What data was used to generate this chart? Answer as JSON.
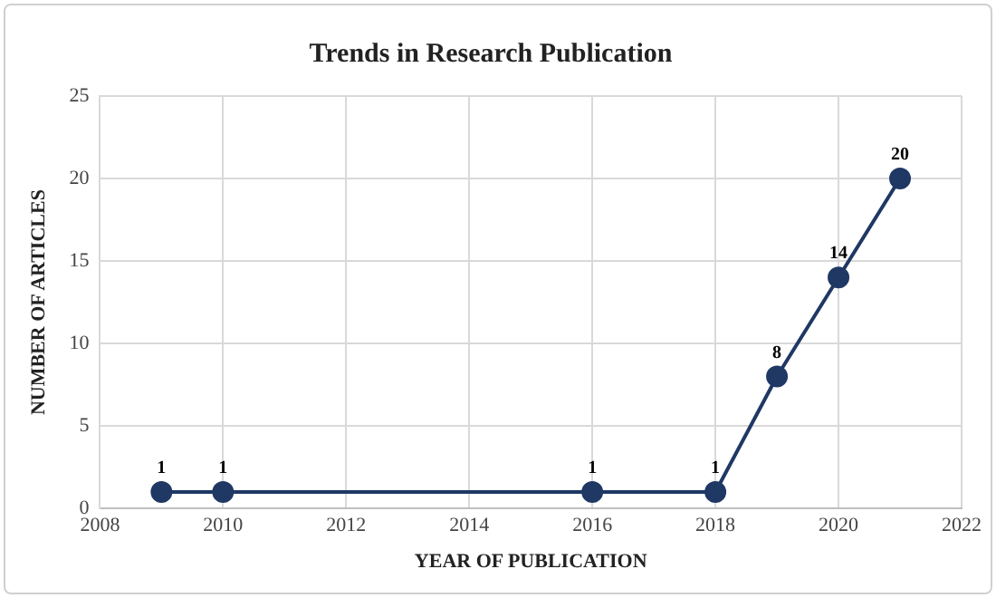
{
  "chart_data": {
    "type": "line",
    "title": "Trends in Research Publication",
    "xlabel": "YEAR OF PUBLICATION",
    "ylabel": "NUMBER OF ARTICLES",
    "x": [
      2009,
      2010,
      2016,
      2018,
      2019,
      2020,
      2021
    ],
    "series": [
      {
        "color": "#1f3864",
        "values": [
          1,
          1,
          1,
          1,
          8,
          14,
          20
        ]
      }
    ],
    "xlim": [
      2008,
      2022
    ],
    "xticks": [
      2008,
      2010,
      2012,
      2014,
      2016,
      2018,
      2020,
      2022
    ],
    "ylim": [
      0,
      25
    ],
    "yticks": [
      0,
      5,
      10,
      15,
      20,
      25
    ],
    "grid": true,
    "legend": false,
    "marker": "circle",
    "line_style": "solid",
    "data_labels": true
  }
}
